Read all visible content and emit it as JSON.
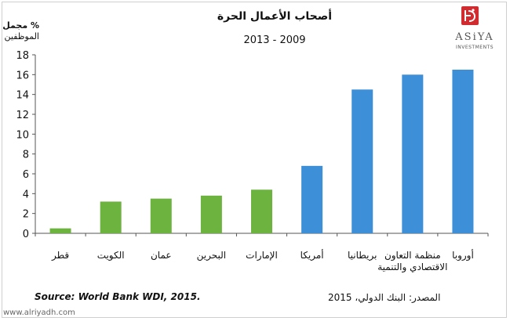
{
  "title": "أصحاب الأعمال الحرة",
  "subtitle": "2013 - 2009",
  "unit": {
    "line1": "% مجمل",
    "line2": "الموظفين"
  },
  "logo": {
    "brand": "ASiYA",
    "sub": "INVESTMENTS",
    "color": "#d12a2f"
  },
  "source_en": "Source: World Bank WDI, 2015.",
  "source_ar": "المصدر: البنك الدولي، 2015",
  "watermark": "www.alriyadh.com",
  "chart_data": {
    "type": "bar",
    "title": "أصحاب الأعمال الحرة",
    "subtitle": "2013 - 2009",
    "ylabel": "% مجمل الموظفين",
    "ylim": [
      0,
      18
    ],
    "yticks": [
      0,
      2,
      4,
      6,
      8,
      10,
      12,
      14,
      16,
      18
    ],
    "categories": [
      [
        "قطر"
      ],
      [
        "الكويت"
      ],
      [
        "عمان"
      ],
      [
        "البحرين"
      ],
      [
        "الإمارات"
      ],
      [
        "أمريكا"
      ],
      [
        "بريطانيا"
      ],
      [
        "منظمة التعاون",
        "الاقتصادي والتنمية"
      ],
      [
        "أوروبا"
      ]
    ],
    "values": [
      0.5,
      3.2,
      3.5,
      3.8,
      4.4,
      6.8,
      14.5,
      16.0,
      16.5
    ],
    "colors": [
      "#6db33f",
      "#6db33f",
      "#6db33f",
      "#6db33f",
      "#6db33f",
      "#3d8fd8",
      "#3d8fd8",
      "#3d8fd8",
      "#3d8fd8"
    ],
    "grid": false,
    "legend": "none"
  }
}
